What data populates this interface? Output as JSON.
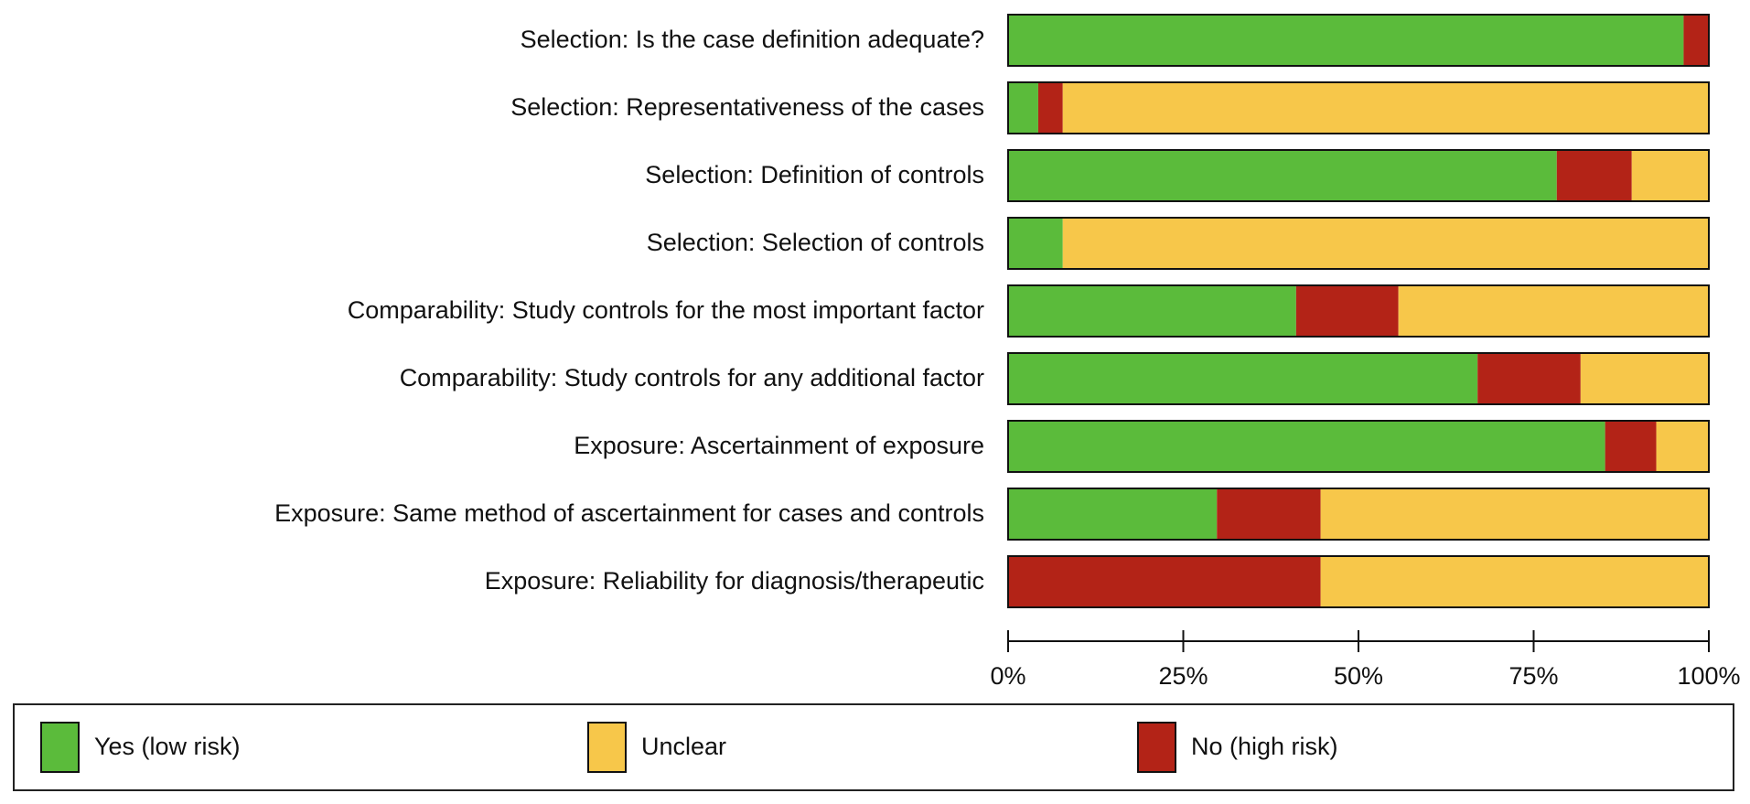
{
  "chart_data": {
    "type": "stacked-bar-horizontal",
    "categories": [
      "Selection: Is the case definition adequate?",
      "Selection: Representativeness of the cases",
      "Selection: Definition of controls",
      "Selection: Selection of controls",
      "Comparability: Study controls for the most important factor",
      "Comparability: Study controls for any additional factor",
      "Exposure: Ascertainment of exposure",
      "Exposure: Same method of ascertainment for cases and controls",
      "Exposure: Reliability for diagnosis/therapeutic"
    ],
    "series": [
      {
        "name": "Yes (low risk)",
        "color": "#5bbb3b",
        "values": [
          96.4,
          4.3,
          78.3,
          7.8,
          41.1,
          67.0,
          85.2,
          29.8,
          0
        ]
      },
      {
        "name": "No (high risk)",
        "color": "#b32317",
        "values": [
          3.6,
          3.5,
          10.7,
          0,
          14.6,
          14.7,
          7.3,
          14.8,
          44.6
        ]
      },
      {
        "name": "Unclear",
        "color": "#f7c74a",
        "values": [
          0,
          92.2,
          11.0,
          92.2,
          44.3,
          18.3,
          7.5,
          55.4,
          55.4
        ]
      }
    ],
    "xlim": [
      0,
      100
    ],
    "xticks": [
      {
        "value": 0,
        "label": "0%"
      },
      {
        "value": 25,
        "label": "25%"
      },
      {
        "value": 50,
        "label": "50%"
      },
      {
        "value": 75,
        "label": "75%"
      },
      {
        "value": 100,
        "label": "100%"
      }
    ]
  }
}
